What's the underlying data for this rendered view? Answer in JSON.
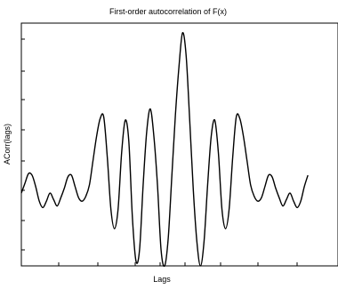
{
  "chart_data": {
    "type": "line",
    "title": "First-order autocorrelation of F(x)",
    "xlabel": "Lags",
    "ylabel": "ACorr(lags)",
    "grid": false,
    "legend": "none",
    "y_ticks_labeled": false,
    "x_ticks_labeled": false,
    "xlim": [
      -40,
      40
    ],
    "ylim": [
      -0.45,
      1.05
    ],
    "series": [
      {
        "x": [
          -40,
          -39,
          -38,
          -37,
          -36,
          -35,
          -34,
          -33,
          -32,
          -31,
          -30,
          -29,
          -28,
          -27,
          -26,
          -25,
          -24,
          -23,
          -22,
          -21,
          -20,
          -19,
          -18,
          -17,
          -16,
          -15,
          -14,
          -13,
          -12,
          -11,
          -10,
          -9,
          -8,
          -7,
          -6,
          -5,
          -4,
          -3,
          -2,
          -1,
          0,
          1,
          2,
          3,
          4,
          5,
          6,
          7,
          8,
          9,
          10,
          11,
          12,
          13,
          14,
          15,
          16,
          17,
          18,
          19,
          20,
          21,
          22,
          23,
          24,
          25,
          26,
          27,
          28,
          29,
          30,
          31,
          32,
          33,
          34,
          35,
          36,
          37,
          38,
          39,
          40
        ],
        "y": [
          0.0,
          0.06,
          0.12,
          0.11,
          0.04,
          -0.05,
          -0.09,
          -0.05,
          0.0,
          -0.04,
          -0.08,
          -0.03,
          0.03,
          0.1,
          0.11,
          0.04,
          -0.03,
          -0.05,
          -0.02,
          0.05,
          0.2,
          0.35,
          0.46,
          0.47,
          0.22,
          -0.1,
          -0.22,
          -0.1,
          0.25,
          0.45,
          0.32,
          -0.15,
          -0.42,
          -0.35,
          0.05,
          0.38,
          0.52,
          0.35,
          0.05,
          -0.35,
          -0.45,
          -0.28,
          0.1,
          0.48,
          0.78,
          0.99,
          0.85,
          0.45,
          0.02,
          -0.3,
          -0.45,
          -0.3,
          0.05,
          0.35,
          0.45,
          0.25,
          -0.1,
          -0.22,
          -0.1,
          0.22,
          0.47,
          0.46,
          0.35,
          0.2,
          0.05,
          -0.02,
          -0.05,
          -0.03,
          0.04,
          0.11,
          0.1,
          0.03,
          -0.03,
          -0.08,
          -0.04,
          0.0,
          -0.05,
          -0.09,
          -0.05,
          0.04,
          0.11
        ]
      }
    ]
  }
}
